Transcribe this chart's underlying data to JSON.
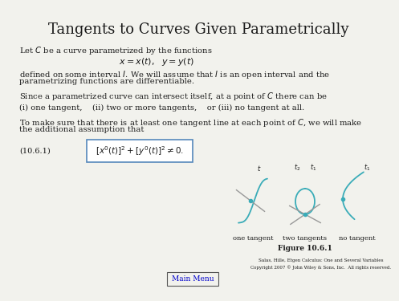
{
  "title": "Tangents to Curves Given Parametrically",
  "background_color": "#f2f2ed",
  "text_color": "#1a1a1a",
  "teal_color": "#3aacb8",
  "gray_color": "#999999",
  "box_border_color": "#5588bb",
  "label_106": "(10.6.1)",
  "fig_label": "Figure 10.6.1",
  "caption_one": "one tangent",
  "caption_two": "two tangents",
  "caption_three": "no tangent",
  "footer_line1": "Salas, Hille, Etgen Calculus: One and Several Variables",
  "footer_line2": "Copyright 2007 © John Wiley & Sons, Inc.  All rights reserved.",
  "main_menu": "Main Menu"
}
